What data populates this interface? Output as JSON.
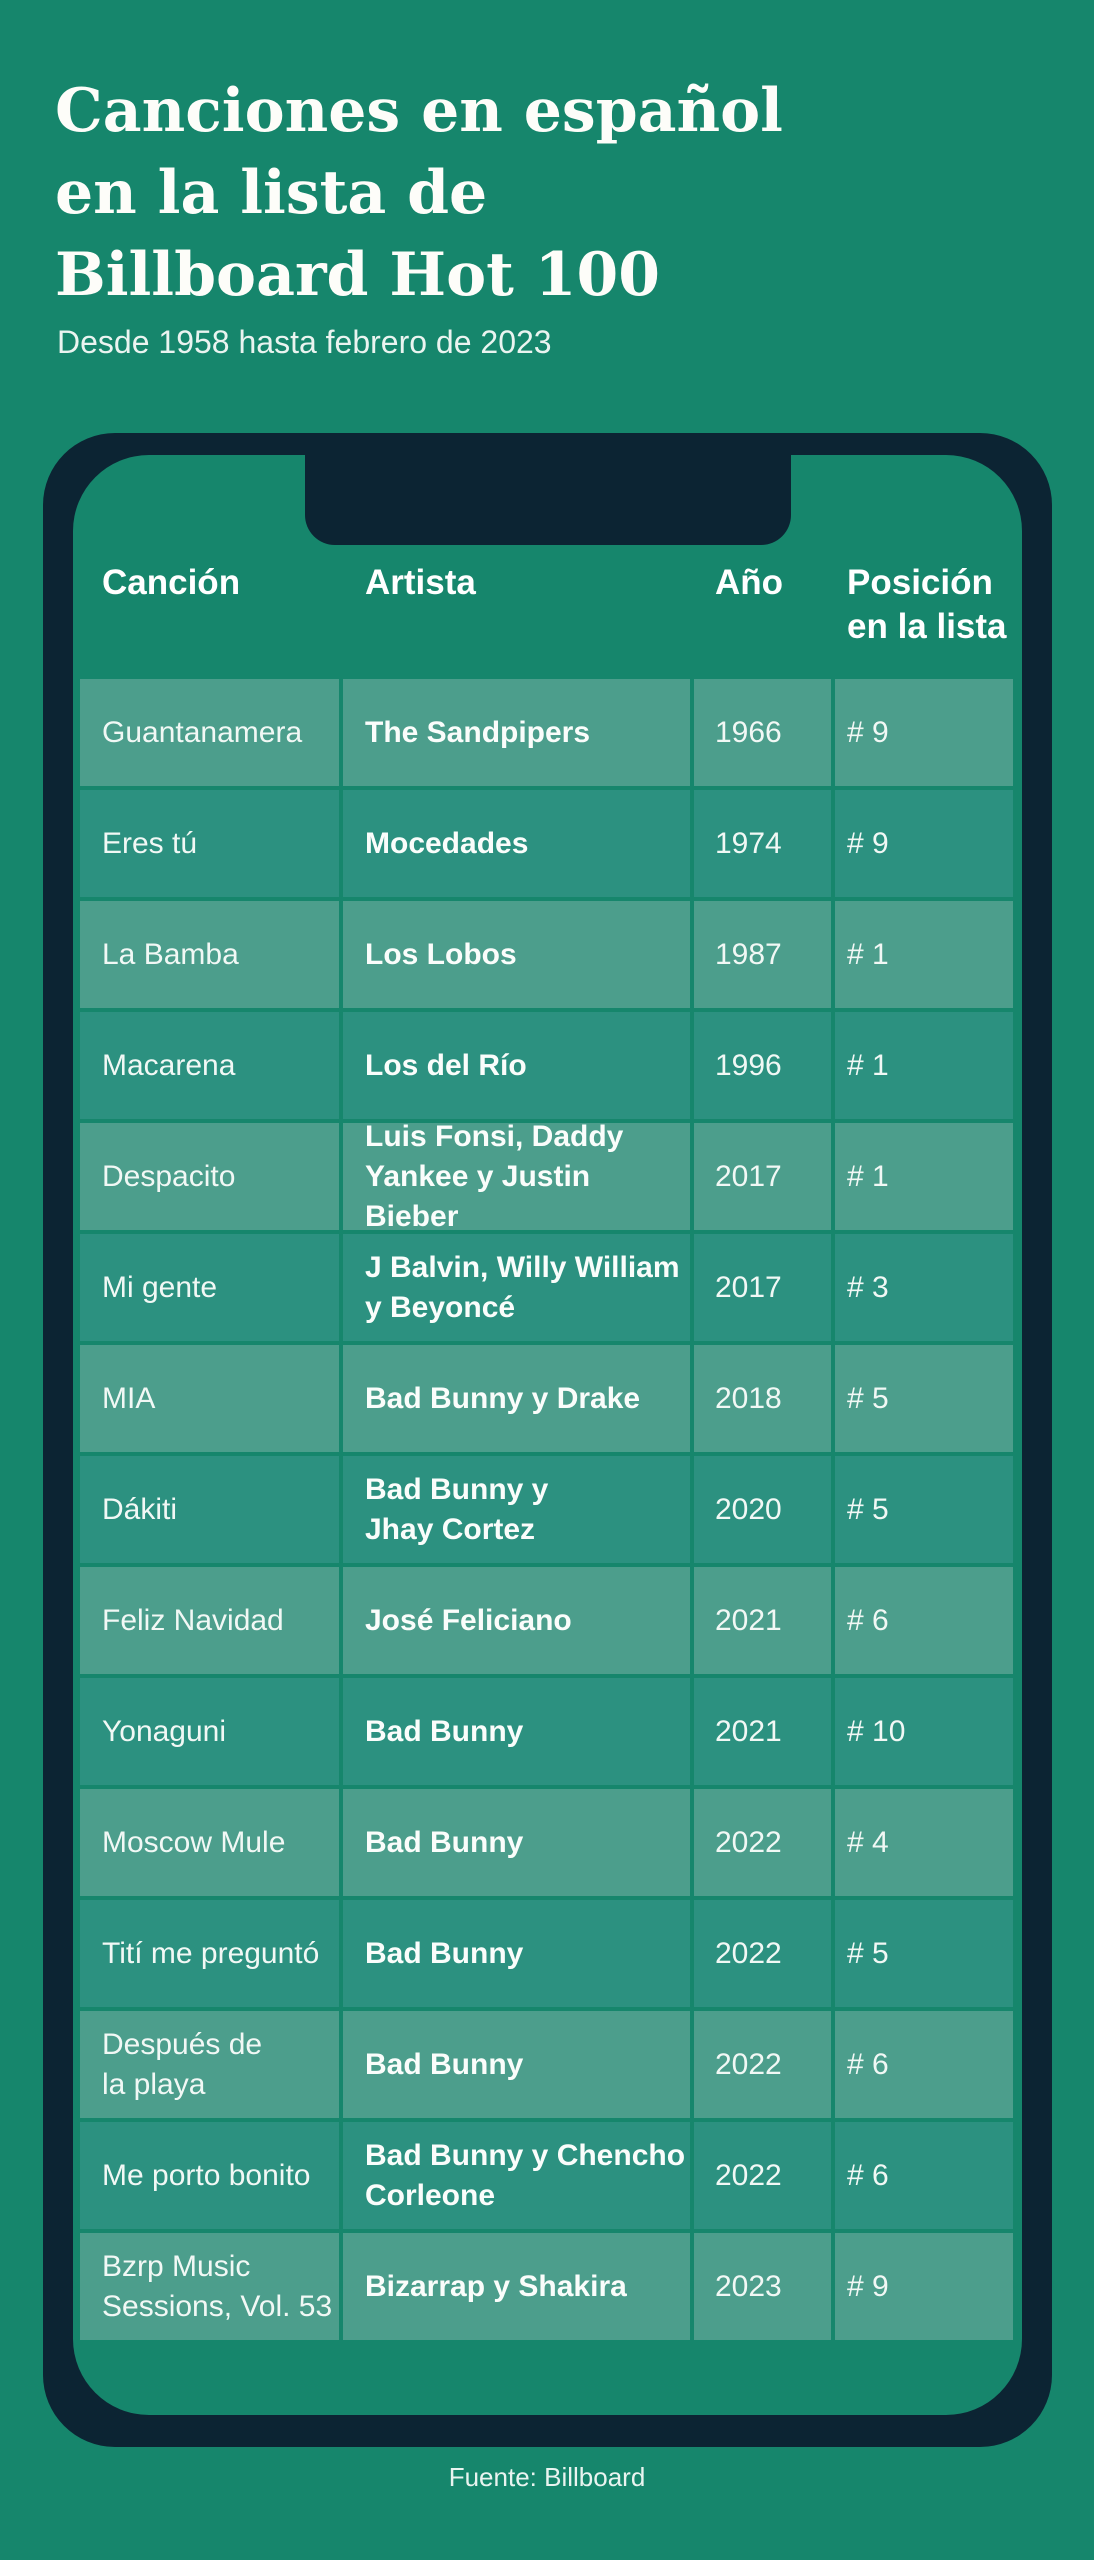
{
  "header": {
    "title": "Canciones en español\nen la lista de\nBillboard Hot 100",
    "subtitle": "Desde 1958 hasta febrero de 2023"
  },
  "chart_data": {
    "type": "table",
    "title": "Canciones en español en la lista de Billboard Hot 100",
    "subtitle": "Desde 1958 hasta febrero de 2023",
    "columns": [
      "Canción",
      "Artista",
      "Año",
      "Posición\nen la lista"
    ],
    "rows": [
      {
        "song": "Guantanamera",
        "artist": "The Sandpipers",
        "year": "1966",
        "position": "# 9"
      },
      {
        "song": "Eres tú",
        "artist": "Mocedades",
        "year": "1974",
        "position": "# 9"
      },
      {
        "song": "La Bamba",
        "artist": "Los Lobos",
        "year": "1987",
        "position": "# 1"
      },
      {
        "song": "Macarena",
        "artist": "Los del Río",
        "year": "1996",
        "position": "# 1"
      },
      {
        "song": "Despacito",
        "artist": "Luis Fonsi, Daddy\nYankee y Justin Bieber",
        "year": "2017",
        "position": "# 1"
      },
      {
        "song": "Mi gente",
        "artist": "J Balvin, Willy William\ny Beyoncé",
        "year": "2017",
        "position": "# 3"
      },
      {
        "song": "MIA",
        "artist": "Bad Bunny y Drake",
        "year": "2018",
        "position": "# 5"
      },
      {
        "song": "Dákiti",
        "artist": "Bad Bunny y\nJhay Cortez",
        "year": "2020",
        "position": "# 5"
      },
      {
        "song": "Feliz Navidad",
        "artist": "José Feliciano",
        "year": "2021",
        "position": "# 6"
      },
      {
        "song": "Yonaguni",
        "artist": "Bad Bunny",
        "year": "2021",
        "position": "# 10"
      },
      {
        "song": "Moscow Mule",
        "artist": "Bad Bunny",
        "year": "2022",
        "position": "# 4"
      },
      {
        "song": "Tití me preguntó",
        "artist": "Bad Bunny",
        "year": "2022",
        "position": "# 5"
      },
      {
        "song": "Después de\nla playa",
        "artist": "Bad Bunny",
        "year": "2022",
        "position": "# 6"
      },
      {
        "song": "Me porto bonito",
        "artist": "Bad Bunny y Chencho\nCorleone",
        "year": "2022",
        "position": "# 6"
      },
      {
        "song": "Bzrp Music\nSessions, Vol. 53",
        "artist": "Bizarrap y Shakira",
        "year": "2023",
        "position": "# 9"
      }
    ],
    "layout": {
      "row_striping": [
        "light",
        "dark"
      ],
      "grid": "off",
      "legend": "none"
    }
  },
  "footer": {
    "source": "Fuente: Billboard"
  },
  "colors": {
    "background_green": "#16866C",
    "phone_frame_navy": "#0C2433",
    "row_light": "#4C9E8C",
    "row_dark": "#2C9180",
    "text_white": "#FFFFFF",
    "cell_text": "#F1F8F5"
  }
}
